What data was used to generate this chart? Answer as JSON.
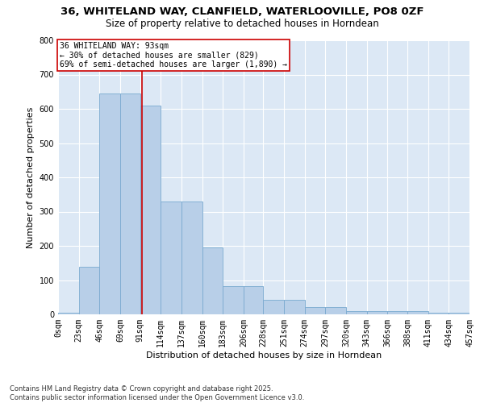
{
  "title_line1": "36, WHITELAND WAY, CLANFIELD, WATERLOOVILLE, PO8 0ZF",
  "title_line2": "Size of property relative to detached houses in Horndean",
  "xlabel": "Distribution of detached houses by size in Horndean",
  "ylabel": "Number of detached properties",
  "bar_color": "#b8cfe8",
  "bar_edge_color": "#7aaad0",
  "background_color": "#dce8f5",
  "grid_color": "#ffffff",
  "annotation_box_color": "#cc0000",
  "red_line_x": 93,
  "annotation_text": "36 WHITELAND WAY: 93sqm\n← 30% of detached houses are smaller (829)\n69% of semi-detached houses are larger (1,890) →",
  "bin_edges": [
    0,
    23,
    46,
    69,
    91,
    114,
    137,
    160,
    183,
    206,
    228,
    251,
    274,
    297,
    320,
    343,
    366,
    388,
    411,
    434,
    457
  ],
  "bin_labels": [
    "0sqm",
    "23sqm",
    "46sqm",
    "69sqm",
    "91sqm",
    "114sqm",
    "137sqm",
    "160sqm",
    "183sqm",
    "206sqm",
    "228sqm",
    "251sqm",
    "274sqm",
    "297sqm",
    "320sqm",
    "343sqm",
    "366sqm",
    "388sqm",
    "411sqm",
    "434sqm",
    "457sqm"
  ],
  "bar_heights": [
    5,
    140,
    645,
    645,
    610,
    330,
    330,
    195,
    82,
    82,
    42,
    42,
    22,
    22,
    10,
    10,
    10,
    10,
    5,
    5
  ],
  "ylim": [
    0,
    800
  ],
  "yticks": [
    0,
    100,
    200,
    300,
    400,
    500,
    600,
    700,
    800
  ],
  "footer_line1": "Contains HM Land Registry data © Crown copyright and database right 2025.",
  "footer_line2": "Contains public sector information licensed under the Open Government Licence v3.0.",
  "title_fontsize": 9.5,
  "subtitle_fontsize": 8.5,
  "axis_label_fontsize": 8,
  "tick_fontsize": 7,
  "annotation_fontsize": 7,
  "footer_fontsize": 6
}
